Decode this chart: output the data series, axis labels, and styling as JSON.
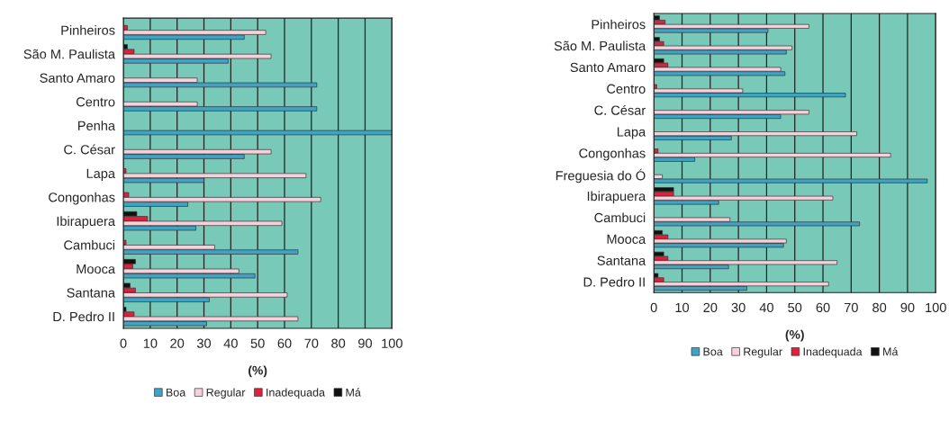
{
  "chart_data": [
    {
      "type": "bar",
      "orientation": "horizontal",
      "xlabel": "(%)",
      "xlim": [
        0,
        100
      ],
      "xticks": [
        0,
        10,
        20,
        30,
        40,
        50,
        60,
        70,
        80,
        90,
        100
      ],
      "grid": "x",
      "legend": "bottom",
      "categories": [
        "Pinheiros",
        "São M. Paulista",
        "Santo Amaro",
        "Centro",
        "Penha",
        "C. César",
        "Lapa",
        "Congonhas",
        "Ibirapuera",
        "Cambuci",
        "Mooca",
        "Santana",
        "D. Pedro II"
      ],
      "series": [
        {
          "name": "Boa",
          "color": "#3fa3c6",
          "values": [
            45,
            39,
            72,
            72,
            100,
            45,
            30,
            24,
            27,
            65,
            49,
            32,
            31
          ]
        },
        {
          "name": "Regular",
          "color": "#f6d0da",
          "values": [
            53,
            55,
            27.5,
            27.5,
            null,
            55,
            68,
            73.5,
            59,
            34,
            43,
            61,
            65
          ]
        },
        {
          "name": "Inadequada",
          "color": "#e0203a",
          "values": [
            1.5,
            4,
            null,
            null,
            null,
            null,
            1,
            2,
            9,
            1,
            3.5,
            4.5,
            4
          ]
        },
        {
          "name": "Má",
          "color": "#111111",
          "values": [
            null,
            1.5,
            null,
            null,
            null,
            null,
            null,
            null,
            5,
            null,
            4.5,
            2.5,
            1
          ]
        }
      ]
    },
    {
      "type": "bar",
      "orientation": "horizontal",
      "xlabel": "(%)",
      "xlim": [
        0,
        100
      ],
      "xticks": [
        0,
        10,
        20,
        30,
        40,
        50,
        60,
        70,
        80,
        90,
        100
      ],
      "grid": "x",
      "legend": "bottom",
      "categories": [
        "Pinheiros",
        "São M. Paulista",
        "Santo Amaro",
        "Centro",
        "C. César",
        "Lapa",
        "Congonhas",
        "Freguesia do Ó",
        "Ibirapuera",
        "Cambuci",
        "Mooca",
        "Santana",
        "D. Pedro II"
      ],
      "series": [
        {
          "name": "Boa",
          "color": "#3fa3c6",
          "values": [
            40.5,
            47,
            46.5,
            68,
            45,
            27.5,
            14.5,
            97,
            23,
            73,
            46,
            26.5,
            33
          ]
        },
        {
          "name": "Regular",
          "color": "#f6d0da",
          "values": [
            55,
            49,
            45,
            31.5,
            55,
            72,
            84,
            3,
            63.5,
            27,
            47,
            65,
            62
          ]
        },
        {
          "name": "Inadequada",
          "color": "#e0203a",
          "values": [
            4,
            3.5,
            5,
            1,
            null,
            null,
            1.5,
            null,
            7,
            null,
            5,
            5,
            3.5
          ]
        },
        {
          "name": "Má",
          "color": "#111111",
          "values": [
            2,
            2,
            3.5,
            null,
            null,
            null,
            null,
            null,
            7,
            null,
            3,
            3.5,
            1.5
          ]
        }
      ]
    }
  ]
}
